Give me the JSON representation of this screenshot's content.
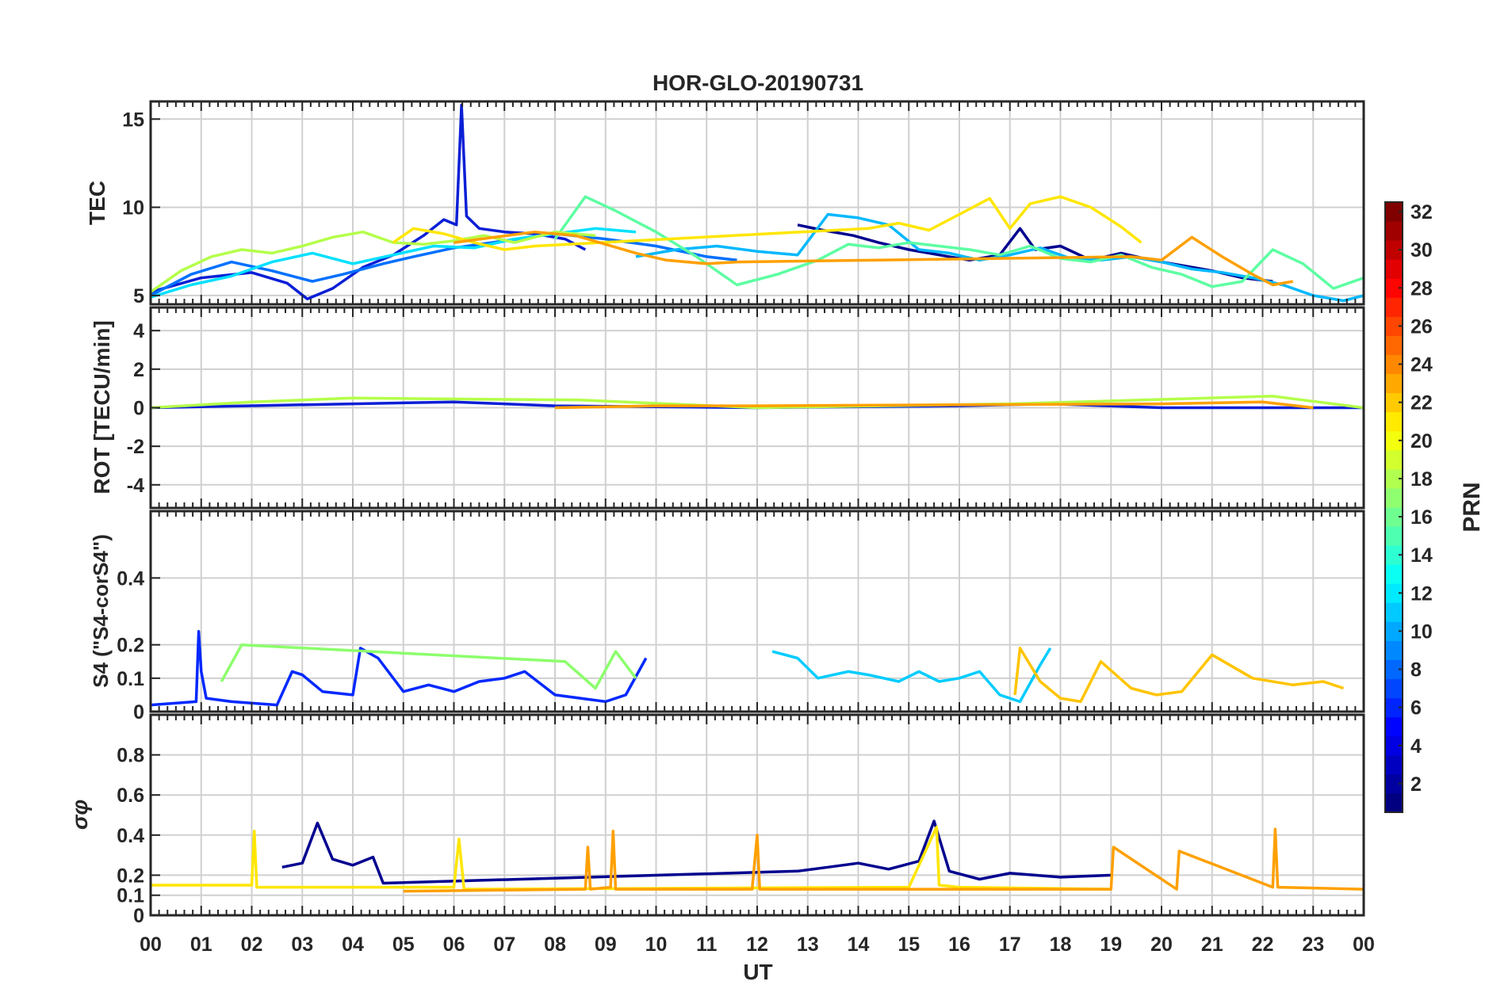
{
  "chart_data": {
    "type": "line",
    "title": "HOR-GLO-20190731",
    "xlabel": "UT",
    "x_ticks": [
      "00",
      "01",
      "02",
      "03",
      "04",
      "05",
      "06",
      "07",
      "08",
      "09",
      "10",
      "11",
      "12",
      "13",
      "14",
      "15",
      "16",
      "17",
      "18",
      "19",
      "20",
      "21",
      "22",
      "23",
      "00"
    ],
    "xlim": [
      0,
      24
    ],
    "grid": true,
    "colorbar": {
      "label": "PRN",
      "range": [
        1,
        32
      ],
      "ticks": [
        "2",
        "4",
        "6",
        "8",
        "10",
        "12",
        "14",
        "16",
        "18",
        "20",
        "22",
        "24",
        "26",
        "28",
        "30",
        "32"
      ],
      "colormap": "jet"
    },
    "panels": [
      {
        "id": "tec",
        "ylabel": "TEC",
        "ylim": [
          4.5,
          16
        ],
        "yticks": [
          5,
          10,
          15
        ],
        "series": [
          {
            "prn": 3,
            "color": "#0a1fd6",
            "x": [
              0,
              1,
              2,
              2.7,
              3.1,
              3.6,
              4.2,
              4.8,
              5.4,
              5.8,
              6.05,
              6.15,
              6.25,
              6.5,
              7,
              7.6,
              8.2,
              8.6
            ],
            "y": [
              5.2,
              6.0,
              6.3,
              5.7,
              4.8,
              5.4,
              6.6,
              7.3,
              8.4,
              9.3,
              9.0,
              15.8,
              9.5,
              8.8,
              8.6,
              8.5,
              8.2,
              7.6
            ]
          },
          {
            "prn": 2,
            "color": "#00008f",
            "x": [
              12.8,
              13.3,
              13.9,
              14.4,
              15,
              15.6,
              16.2,
              16.8,
              17.2,
              17.5,
              18,
              18.6,
              19.2,
              19.8,
              20.4,
              21,
              21.6,
              22.2
            ],
            "y": [
              9.0,
              8.7,
              8.4,
              8.0,
              7.6,
              7.3,
              7.0,
              7.3,
              8.8,
              7.6,
              7.8,
              7.0,
              7.4,
              7.0,
              6.7,
              6.4,
              6.0,
              5.8
            ]
          },
          {
            "prn": 7,
            "color": "#0070ff",
            "x": [
              0,
              0.8,
              1.6,
              2.4,
              3.2,
              3.8,
              4.6,
              5.2,
              6,
              7,
              8,
              9,
              10,
              11,
              11.6
            ],
            "y": [
              5.0,
              6.2,
              6.9,
              6.4,
              5.8,
              6.2,
              6.8,
              7.2,
              7.7,
              8.1,
              8.5,
              8.2,
              7.8,
              7.2,
              7.0
            ]
          },
          {
            "prn": 10,
            "color": "#00b8ff",
            "x": [
              9.6,
              10.4,
              11.2,
              12,
              12.8,
              13.4,
              14,
              14.6,
              15.2,
              15.8,
              16.4,
              17,
              17.6,
              18.2,
              18.8,
              19.4,
              20,
              20.6,
              21.2,
              21.8,
              22.4,
              23,
              23.6,
              24
            ],
            "y": [
              7.2,
              7.6,
              7.8,
              7.5,
              7.3,
              9.6,
              9.4,
              9.0,
              7.6,
              7.4,
              7.0,
              7.3,
              7.7,
              7.1,
              7.0,
              7.2,
              6.9,
              6.5,
              6.3,
              6.0,
              5.6,
              5.0,
              4.7,
              5.0
            ]
          },
          {
            "prn": 12,
            "color": "#00e0ff",
            "x": [
              0,
              0.8,
              1.6,
              2.4,
              3.2,
              4,
              4.8,
              5.6,
              6.4,
              7.2,
              8,
              8.8,
              9.6
            ],
            "y": [
              4.9,
              5.6,
              6.1,
              6.9,
              7.4,
              6.8,
              7.3,
              7.8,
              7.7,
              8.2,
              8.5,
              8.8,
              8.6
            ]
          },
          {
            "prn": 15,
            "color": "#5dffa2",
            "x": [
              8,
              8.6,
              9.2,
              9.6,
              10,
              10.8,
              11.6,
              12.4,
              13.2,
              13.8,
              14.4,
              15,
              15.6,
              16.2,
              16.8,
              17.4,
              18,
              18.6,
              19.2,
              19.8,
              20.4,
              21,
              21.6,
              22.2,
              22.8,
              23.4,
              24
            ],
            "y": [
              8.2,
              10.6,
              9.8,
              9.2,
              8.6,
              7.2,
              5.6,
              6.2,
              7.0,
              7.9,
              7.7,
              8.0,
              7.8,
              7.6,
              7.3,
              7.8,
              7.1,
              6.9,
              7.3,
              6.6,
              6.2,
              5.5,
              5.8,
              7.6,
              6.8,
              5.4,
              6.0
            ]
          },
          {
            "prn": 18,
            "color": "#b4ff4a",
            "x": [
              0,
              0.6,
              1.2,
              1.8,
              2.4,
              3,
              3.6,
              4.2,
              4.8,
              5.4,
              6,
              6.6,
              7.2,
              8,
              8.8
            ],
            "y": [
              5.2,
              6.4,
              7.2,
              7.6,
              7.4,
              7.8,
              8.3,
              8.6,
              8.0,
              7.9,
              8.1,
              8.4,
              8.0,
              8.6,
              8.4
            ]
          },
          {
            "prn": 20,
            "color": "#ffe600",
            "x": [
              4.8,
              5.2,
              5.8,
              6.4,
              7,
              7.6,
              14.2,
              14.8,
              15.4,
              16,
              16.6,
              17,
              17.4,
              18,
              18.6,
              19.2,
              19.6
            ],
            "y": [
              8.0,
              8.8,
              8.5,
              8.0,
              7.6,
              7.8,
              8.8,
              9.1,
              8.7,
              9.6,
              10.5,
              8.8,
              10.2,
              10.6,
              10.0,
              8.9,
              8.0
            ]
          },
          {
            "prn": 22,
            "color": "#ffa000",
            "x": [
              6,
              6.8,
              7.6,
              8.4,
              9,
              9.6,
              10.2,
              11,
              11.6,
              19.4,
              20,
              20.6,
              21.2,
              21.8,
              22.2,
              22.6
            ],
            "y": [
              8.0,
              8.3,
              8.6,
              8.4,
              7.9,
              7.4,
              7.0,
              6.8,
              6.9,
              7.2,
              7.0,
              8.3,
              7.2,
              6.2,
              5.6,
              5.8
            ]
          }
        ]
      },
      {
        "id": "rot",
        "ylabel": "ROT [TECU/min]",
        "ylim": [
          -5.2,
          5.2
        ],
        "yticks": [
          -4,
          -2,
          0,
          2,
          4
        ],
        "series": [
          {
            "prn": 3,
            "color": "#0a1fd6",
            "x": [
              0,
              4,
              6,
              8,
              12,
              16,
              17.8,
              20,
              24
            ],
            "y": [
              0,
              0.2,
              0.3,
              0.1,
              0,
              0.1,
              0.2,
              0,
              0
            ]
          },
          {
            "prn": 18,
            "color": "#b4ff4a",
            "x": [
              0,
              2,
              4,
              8.5,
              12,
              17,
              22.2,
              24
            ],
            "y": [
              0,
              0.3,
              0.5,
              0.4,
              0,
              0.2,
              0.6,
              0
            ]
          },
          {
            "prn": 22,
            "color": "#ffa000",
            "x": [
              8,
              10,
              12,
              20,
              22,
              23
            ],
            "y": [
              0,
              0.1,
              0.1,
              0.2,
              0.3,
              0
            ]
          }
        ]
      },
      {
        "id": "s4",
        "ylabel": "S4 (\"S4-corS4\")",
        "ylim": [
          0,
          0.6
        ],
        "yticks": [
          0,
          0.1,
          0.2,
          0.4
        ],
        "series": [
          {
            "prn": 4,
            "color": "#0028ff",
            "x": [
              0,
              0.9,
              0.95,
              1.0,
              1.1,
              1.6,
              2.5,
              2.8,
              3,
              3.4,
              4,
              4.15,
              4.5,
              5,
              5.5,
              6,
              6.5,
              7,
              7.4,
              8,
              8.5,
              9,
              9.4,
              9.8
            ],
            "y": [
              0.02,
              0.03,
              0.24,
              0.12,
              0.04,
              0.03,
              0.02,
              0.12,
              0.11,
              0.06,
              0.05,
              0.19,
              0.16,
              0.06,
              0.08,
              0.06,
              0.09,
              0.1,
              0.12,
              0.05,
              0.04,
              0.03,
              0.05,
              0.16
            ]
          },
          {
            "prn": 11,
            "color": "#00ccff",
            "x": [
              12.3,
              12.8,
              13.2,
              13.8,
              14.2,
              14.8,
              15.2,
              15.6,
              16,
              16.4,
              16.8,
              17.2,
              17.6,
              17.8
            ],
            "y": [
              0.18,
              0.16,
              0.1,
              0.12,
              0.11,
              0.09,
              0.12,
              0.09,
              0.1,
              0.12,
              0.05,
              0.03,
              0.14,
              0.19
            ]
          },
          {
            "prn": 17,
            "color": "#8cff6c",
            "x": [
              1.4,
              1.8,
              8.2,
              8.8,
              9.2,
              9.6
            ],
            "y": [
              0.09,
              0.2,
              0.15,
              0.07,
              0.18,
              0.1
            ]
          },
          {
            "prn": 21,
            "color": "#ffc400",
            "x": [
              17.1,
              17.2,
              17.6,
              18,
              18.4,
              18.8,
              19.4,
              19.9,
              20.4,
              21.0,
              21.8,
              22.6,
              23.2,
              23.6
            ],
            "y": [
              0.05,
              0.19,
              0.09,
              0.04,
              0.03,
              0.15,
              0.07,
              0.05,
              0.06,
              0.17,
              0.1,
              0.08,
              0.09,
              0.07
            ]
          }
        ]
      },
      {
        "id": "sigma_phi",
        "ylabel": "σφ",
        "ylim": [
          0,
          1
        ],
        "yticks": [
          0,
          0.1,
          0.2,
          0.4,
          0.6,
          0.8
        ],
        "series": [
          {
            "prn": 2,
            "color": "#00008f",
            "x": [
              2.6,
              3.0,
              3.3,
              3.6,
              4.0,
              4.4,
              4.6,
              12.8,
              13.4,
              14,
              14.6,
              15.2,
              15.5,
              15.8,
              16.4,
              17,
              18,
              19
            ],
            "y": [
              0.24,
              0.26,
              0.46,
              0.28,
              0.25,
              0.29,
              0.16,
              0.22,
              0.24,
              0.26,
              0.23,
              0.27,
              0.47,
              0.22,
              0.18,
              0.21,
              0.19,
              0.2
            ]
          },
          {
            "prn": 20,
            "color": "#ffe600",
            "x": [
              0,
              2,
              2.05,
              2.1,
              6,
              6.1,
              6.2,
              15,
              15.55,
              15.6,
              16,
              19
            ],
            "y": [
              0.15,
              0.15,
              0.42,
              0.14,
              0.14,
              0.38,
              0.13,
              0.14,
              0.44,
              0.15,
              0.14,
              0.13
            ]
          },
          {
            "prn": 22,
            "color": "#ffa000",
            "x": [
              5,
              8.6,
              8.65,
              8.7,
              9.1,
              9.15,
              9.2,
              11.9,
              12.0,
              12.05,
              19,
              19.05,
              20.3,
              20.35,
              22.2,
              22.25,
              22.3,
              24
            ],
            "y": [
              0.12,
              0.13,
              0.34,
              0.13,
              0.14,
              0.42,
              0.13,
              0.13,
              0.4,
              0.13,
              0.13,
              0.34,
              0.13,
              0.32,
              0.14,
              0.43,
              0.14,
              0.13
            ]
          }
        ]
      }
    ]
  }
}
